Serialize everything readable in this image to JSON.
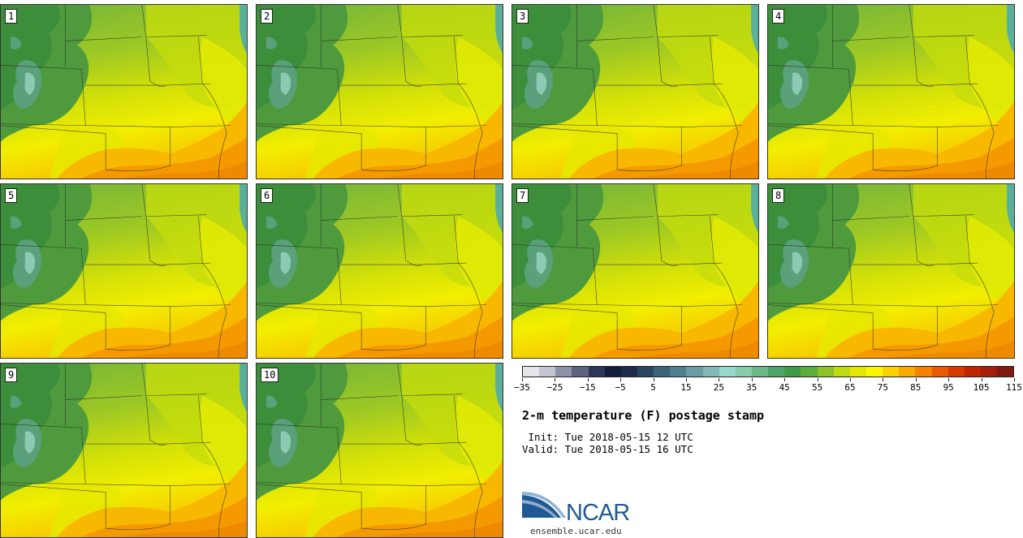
{
  "panels": [
    {
      "label": "1"
    },
    {
      "label": "2"
    },
    {
      "label": "3"
    },
    {
      "label": "4"
    },
    {
      "label": "5"
    },
    {
      "label": "6"
    },
    {
      "label": "7"
    },
    {
      "label": "8"
    },
    {
      "label": "9"
    },
    {
      "label": "10"
    }
  ],
  "colorbar": {
    "colors": [
      "#e5e5ea",
      "#c3c6d0",
      "#8e94a8",
      "#5c6480",
      "#2d3558",
      "#151d3c",
      "#1b2c4c",
      "#2a4660",
      "#3c6478",
      "#4f8090",
      "#6a9ca5",
      "#82b8b8",
      "#95d8cc",
      "#85cca8",
      "#6ab888",
      "#4ea56c",
      "#3f9a4a",
      "#5cae3a",
      "#8cc426",
      "#c0da10",
      "#e4e800",
      "#fbf700",
      "#fbd400",
      "#fbaa00",
      "#f68200",
      "#ea5a00",
      "#d83a00",
      "#c02400",
      "#a41e08",
      "#7e1a10"
    ],
    "tick_labels": [
      "−35",
      "−25",
      "−15",
      "−5",
      "5",
      "15",
      "25",
      "35",
      "45",
      "55",
      "65",
      "75",
      "85",
      "95",
      "105",
      "115"
    ]
  },
  "title": "2-m temperature (F) postage stamp",
  "init": " Init: Tue 2018-05-15 12 UTC",
  "valid": "Valid: Tue 2018-05-15 16 UTC",
  "logo_text": "NCAR",
  "site": "ensemble.ucar.edu"
}
